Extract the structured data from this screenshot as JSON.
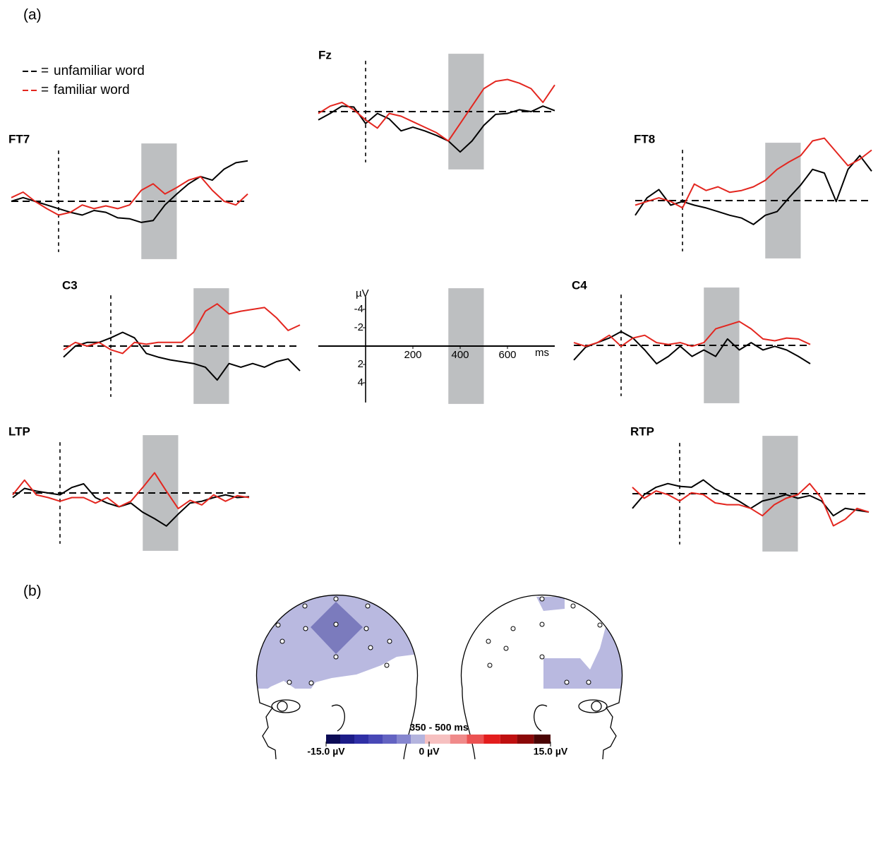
{
  "panel_a_label": "(a)",
  "panel_b_label": "(b)",
  "legend": {
    "separator": "=",
    "entries": [
      {
        "name": "unfamiliar word",
        "color": "#000000"
      },
      {
        "name": "familiar word",
        "color": "#e3261f"
      }
    ]
  },
  "chart_data": [
    {
      "type": "line",
      "title": "Fz",
      "xlim": [
        -200,
        800
      ],
      "ylim": [
        -6.3,
        6.3
      ],
      "invert_y": true,
      "highlight": [
        350,
        500
      ],
      "x": [
        -200,
        -150,
        -100,
        -50,
        0,
        50,
        100,
        150,
        200,
        250,
        300,
        350,
        400,
        450,
        500,
        550,
        600,
        650,
        700,
        750,
        800
      ],
      "series": [
        {
          "values": [
            0.9,
            0.2,
            -0.6,
            -0.5,
            1.3,
            0.2,
            0.8,
            2.1,
            1.7,
            2.1,
            2.6,
            3.2,
            4.4,
            3.2,
            1.5,
            0.3,
            0.2,
            -0.2,
            0,
            -0.6,
            -0.1
          ]
        },
        {
          "values": [
            0.2,
            -0.6,
            -1,
            -0.2,
            0.9,
            1.8,
            0.2,
            0.5,
            1.1,
            1.7,
            2.3,
            3.2,
            1.3,
            -0.6,
            -2.5,
            -3.3,
            -3.5,
            -3.1,
            -2.5,
            -1,
            -2.9
          ]
        }
      ]
    },
    {
      "type": "line",
      "title": "FT7",
      "xlim": [
        -200,
        800
      ],
      "ylim": [
        -6.3,
        6.3
      ],
      "invert_y": true,
      "highlight": [
        350,
        500
      ],
      "x": [
        -200,
        -150,
        -100,
        -50,
        0,
        50,
        100,
        150,
        200,
        250,
        300,
        350,
        400,
        450,
        500,
        550,
        600,
        650,
        700,
        750,
        800
      ],
      "series": [
        {
          "values": [
            0,
            -0.4,
            0,
            0.4,
            0.8,
            1.2,
            1.5,
            1,
            1.2,
            1.8,
            1.9,
            2.3,
            2.1,
            0.4,
            -0.8,
            -1.9,
            -2.7,
            -2.3,
            -3.5,
            -4.2,
            -4.4
          ]
        },
        {
          "values": [
            -0.4,
            -1,
            0,
            0.8,
            1.5,
            1.2,
            0.4,
            0.8,
            0.5,
            0.8,
            0.4,
            -1.2,
            -1.9,
            -0.8,
            -1.5,
            -2.3,
            -2.7,
            -1.2,
            0,
            0.4,
            -0.8
          ]
        }
      ]
    },
    {
      "type": "line",
      "title": "FT8",
      "xlim": [
        -200,
        800
      ],
      "ylim": [
        -6.3,
        6.3
      ],
      "invert_y": true,
      "highlight": [
        350,
        500
      ],
      "x": [
        -200,
        -150,
        -100,
        -50,
        0,
        50,
        100,
        150,
        200,
        250,
        300,
        350,
        400,
        450,
        500,
        550,
        600,
        650,
        700,
        750,
        800
      ],
      "series": [
        {
          "values": [
            1.6,
            -0.3,
            -1.2,
            0.5,
            0.1,
            0.5,
            0.8,
            1.2,
            1.6,
            1.9,
            2.6,
            1.6,
            1.2,
            -0.3,
            -1.7,
            -3.4,
            -3,
            0.1,
            -3.4,
            -4.9,
            -3.2
          ]
        },
        {
          "values": [
            0.5,
            0.1,
            -0.3,
            0.1,
            0.8,
            -1.8,
            -1.1,
            -1.5,
            -0.9,
            -1.1,
            -1.5,
            -2.2,
            -3.4,
            -4.2,
            -4.9,
            -6.5,
            -6.8,
            -5.3,
            -3.8,
            -4.5,
            -5.5
          ]
        }
      ]
    },
    {
      "type": "line",
      "title": "C3",
      "xlim": [
        -200,
        800
      ],
      "ylim": [
        -6.3,
        6.3
      ],
      "invert_y": true,
      "highlight": [
        350,
        500
      ],
      "x": [
        -200,
        -150,
        -100,
        -50,
        0,
        50,
        100,
        150,
        200,
        250,
        300,
        350,
        400,
        450,
        500,
        550,
        600,
        650,
        700,
        750,
        800
      ],
      "series": [
        {
          "values": [
            1.2,
            0,
            -0.4,
            -0.4,
            -0.9,
            -1.5,
            -0.9,
            0.8,
            1.2,
            1.5,
            1.7,
            1.9,
            2.3,
            3.7,
            1.9,
            2.3,
            1.9,
            2.3,
            1.7,
            1.4,
            2.7
          ]
        },
        {
          "values": [
            0.4,
            -0.4,
            0,
            -0.4,
            0.4,
            0.8,
            -0.4,
            -0.2,
            -0.4,
            -0.4,
            -0.4,
            -1.5,
            -3.8,
            -4.6,
            -3.5,
            -3.8,
            -4,
            -4.2,
            -3.1,
            -1.7,
            -2.3
          ]
        }
      ]
    },
    {
      "type": "line",
      "title": "C4",
      "xlim": [
        -200,
        800
      ],
      "ylim": [
        -6.3,
        6.3
      ],
      "invert_y": true,
      "highlight": [
        350,
        500
      ],
      "x": [
        -200,
        -150,
        -100,
        -50,
        0,
        50,
        100,
        150,
        200,
        250,
        300,
        350,
        400,
        450,
        500,
        550,
        600,
        650,
        700,
        750,
        800
      ],
      "series": [
        {
          "values": [
            1.6,
            0.2,
            -0.3,
            -0.8,
            -1.5,
            -0.8,
            0.5,
            2,
            1.2,
            0.1,
            1.2,
            0.5,
            1.2,
            -0.7,
            0.5,
            -0.3,
            0.5,
            0.1,
            0.5,
            1.2,
            2
          ]
        },
        {
          "values": [
            -0.3,
            0.1,
            -0.3,
            -1.1,
            0.1,
            -0.8,
            -1.1,
            -0.3,
            -0.1,
            -0.3,
            0.1,
            -0.3,
            -1.8,
            -2.2,
            -2.6,
            -1.8,
            -0.7,
            -0.5,
            -0.8,
            -0.7,
            -0.1
          ]
        }
      ]
    },
    {
      "type": "line",
      "title": "LTP",
      "xlim": [
        -200,
        800
      ],
      "ylim": [
        -6.3,
        6.3
      ],
      "invert_y": true,
      "highlight": [
        350,
        500
      ],
      "x": [
        -200,
        -150,
        -100,
        -50,
        0,
        50,
        100,
        150,
        200,
        250,
        300,
        350,
        400,
        450,
        500,
        550,
        600,
        650,
        700,
        750,
        800
      ],
      "series": [
        {
          "values": [
            0.5,
            -0.5,
            -0.2,
            0,
            0.2,
            -0.6,
            -1,
            0.5,
            1.1,
            1.5,
            1.1,
            2.1,
            2.8,
            3.6,
            2.3,
            1.1,
            0.9,
            0.5,
            0.2,
            0.5,
            0.4
          ]
        },
        {
          "values": [
            0.2,
            -1.4,
            0.2,
            0.5,
            0.9,
            0.5,
            0.5,
            1.1,
            0.5,
            1.5,
            0.9,
            -0.6,
            -2.2,
            -0.2,
            1.7,
            0.8,
            1.3,
            0.2,
            0.9,
            0.3,
            0.5
          ]
        }
      ]
    },
    {
      "type": "line",
      "title": "RTP",
      "xlim": [
        -200,
        800
      ],
      "ylim": [
        -6.3,
        6.3
      ],
      "invert_y": true,
      "highlight": [
        350,
        500
      ],
      "x": [
        -200,
        -150,
        -100,
        -50,
        0,
        50,
        100,
        150,
        200,
        250,
        300,
        350,
        400,
        450,
        500,
        550,
        600,
        650,
        700,
        750,
        800
      ],
      "series": [
        {
          "values": [
            1.6,
            0.1,
            -0.7,
            -1.1,
            -0.8,
            -0.7,
            -1.5,
            -0.5,
            0.1,
            0.8,
            1.6,
            0.8,
            0.5,
            0.1,
            0.5,
            0.2,
            0.8,
            2.4,
            1.6,
            1.8,
            2
          ]
        },
        {
          "values": [
            -0.7,
            0.5,
            -0.3,
            0.1,
            0.8,
            -0.1,
            0.1,
            1,
            1.2,
            1.2,
            1.6,
            2.4,
            1.2,
            0.5,
            0.1,
            -1.1,
            0.5,
            3.5,
            2.8,
            1.6,
            2
          ]
        }
      ]
    },
    {
      "type": "axes",
      "xlim": [
        -200,
        800
      ],
      "ylim": [
        -6.3,
        6.3
      ],
      "invert_y": true,
      "highlight": [
        350,
        500
      ],
      "xticks": [
        200,
        400,
        600
      ],
      "yticks": [
        -4,
        -2,
        2,
        4
      ],
      "xlabel": "ms",
      "ylabel": "µV"
    }
  ],
  "topomap": {
    "title": "350 - 500 ms",
    "clim": [
      -15,
      15
    ],
    "ticks": [
      {
        "value": -15,
        "label": "-15.0 µV"
      },
      {
        "value": 0,
        "label": "0 µV"
      },
      {
        "value": 15,
        "label": "15.0 µV"
      }
    ],
    "colors": [
      "#0b0b55",
      "#1c1c88",
      "#2f2fa6",
      "#4848b6",
      "#6363c2",
      "#8686cf",
      "#b4b4de",
      "#f6c0c0",
      "#f08a8a",
      "#eb5252",
      "#e31d1d",
      "#bf1010",
      "#8a0808",
      "#4a0404"
    ]
  }
}
